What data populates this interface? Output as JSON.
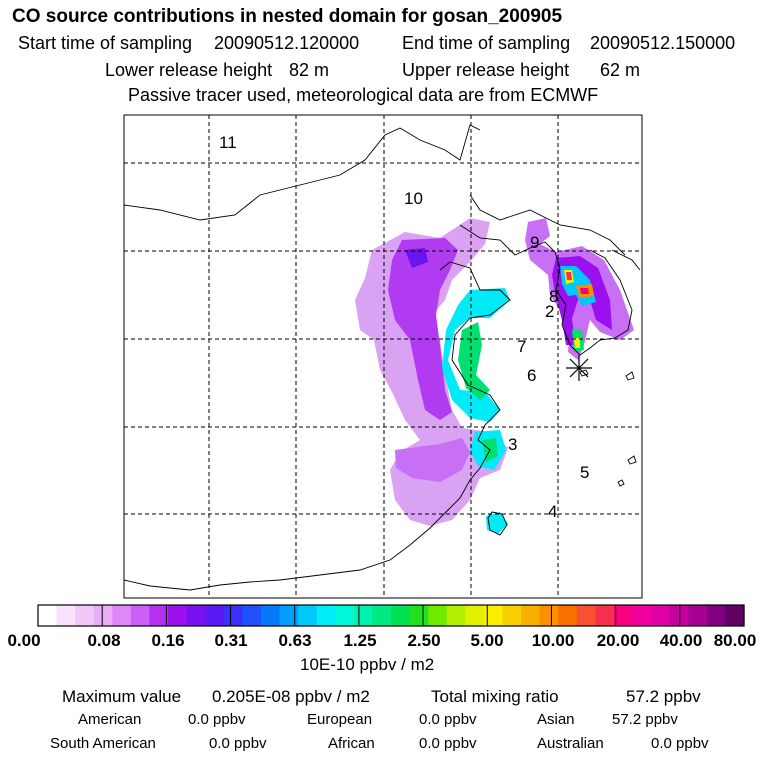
{
  "title": "CO  source contributions in nested domain for gosan_200905",
  "sampling": {
    "start_label": "Start time of sampling",
    "start_value": "20090512.120000",
    "end_label": "End time of sampling",
    "end_value": "20090512.150000"
  },
  "release": {
    "lower_label": "Lower release height",
    "lower_value": "82 m",
    "upper_label": "Upper release height",
    "upper_value": "62 m"
  },
  "subtitle": "Passive tracer used, meteorological data are from ECMWF",
  "region_labels": [
    "11",
    "10",
    "9",
    "8",
    "2",
    "7",
    "6",
    "3",
    "5",
    "4"
  ],
  "colorbar": {
    "ticks": [
      "0.00",
      "0.08",
      "0.16",
      "0.31",
      "0.63",
      "1.25",
      "2.50",
      "5.00",
      "10.00",
      "20.00",
      "40.00",
      "80.00"
    ],
    "unit": "10E-10 ppbv / m2",
    "colors": [
      "#ffffff",
      "#f9e3fb",
      "#f2c8f8",
      "#eaaef6",
      "#dd88f6",
      "#cc5ff5",
      "#b530f0",
      "#9a10ee",
      "#7a10f0",
      "#5a18f4",
      "#3a30f8",
      "#2050fa",
      "#0878fa",
      "#00a0fa",
      "#00c8fa",
      "#00eefa",
      "#00f8d8",
      "#00f0b0",
      "#00e880",
      "#00e050",
      "#20e020",
      "#70e800",
      "#b0f000",
      "#e0f000",
      "#f8f000",
      "#f8d000",
      "#f8b000",
      "#f89000",
      "#f87000",
      "#f85030",
      "#f83050",
      "#f80080",
      "#f000a0",
      "#e000a8",
      "#c800a0",
      "#a80090",
      "#800080",
      "#600060"
    ]
  },
  "stats": {
    "max_label": "Maximum value",
    "max_value": "0.205E-08 ppbv / m2",
    "total_label": "Total mixing ratio",
    "total_value": "57.2 ppbv"
  },
  "contributions": [
    {
      "name": "American",
      "value": "0.0 ppbv"
    },
    {
      "name": "European",
      "value": "0.0 ppbv"
    },
    {
      "name": "Asian",
      "value": "57.2 ppbv"
    },
    {
      "name": "South American",
      "value": "0.0 ppbv"
    },
    {
      "name": "African",
      "value": "0.0 ppbv"
    },
    {
      "name": "Australian",
      "value": "0.0 ppbv"
    }
  ]
}
